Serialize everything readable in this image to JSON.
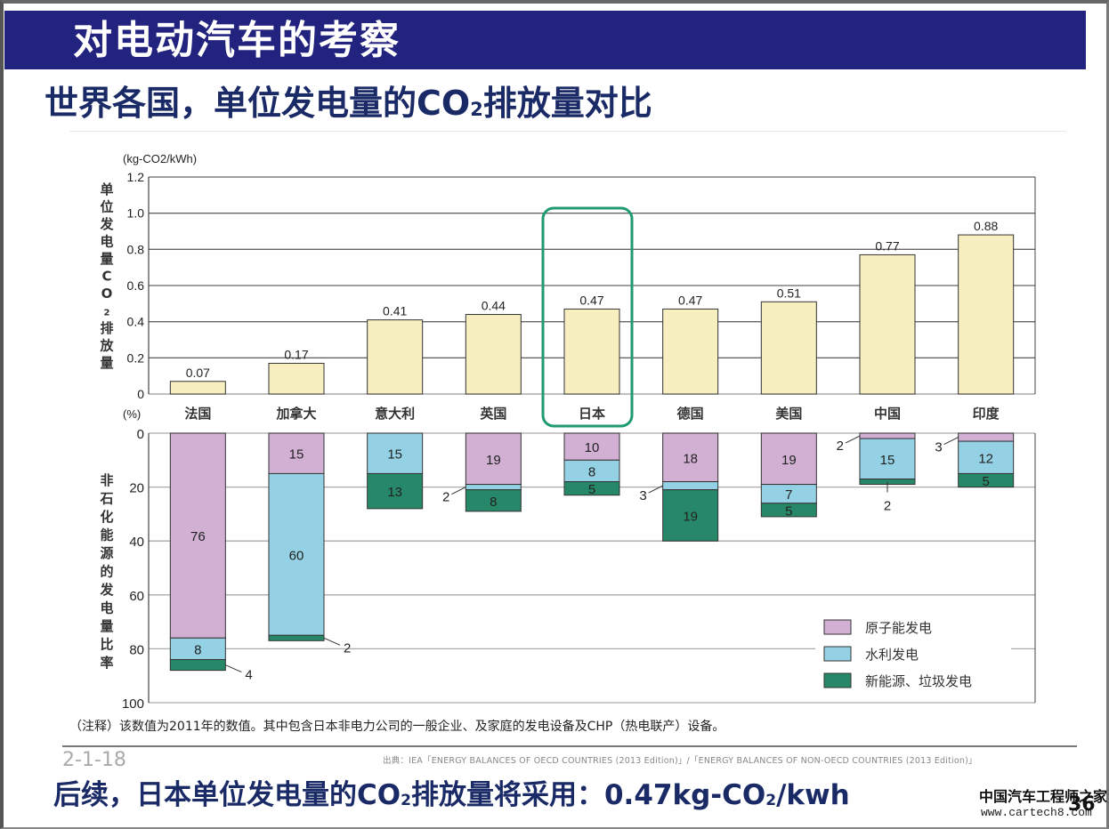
{
  "header": {
    "title": "对电动汽车的考察"
  },
  "subtitle": {
    "before": "世界各国，单位发电量的CO",
    "sub": "2",
    "after": "排放量对比"
  },
  "colors": {
    "header_bg": "#22227f",
    "title_text": "#1a2a66",
    "co2_bar": "#f7efc0",
    "nuclear": "#d2b0d4",
    "hydro": "#94d1e4",
    "renewable": "#268868",
    "highlight": "#1f9a72"
  },
  "chart_data": [
    {
      "type": "bar",
      "title": "单位发电量CO2排放量",
      "unit_label": "(kg-CO2/kWh)",
      "ylabel": "单位发电量CO2排放量",
      "categories": [
        "法国",
        "加拿大",
        "意大利",
        "英国",
        "日本",
        "德国",
        "美国",
        "中国",
        "印度"
      ],
      "values": [
        0.07,
        0.17,
        0.41,
        0.44,
        0.47,
        0.47,
        0.51,
        0.77,
        0.88
      ],
      "value_labels": [
        "0.07",
        "0.17",
        "0.41",
        "0.44",
        "0.47",
        "0.47",
        "0.51",
        "0.77",
        "0.88"
      ],
      "ylim": [
        0,
        1.2
      ],
      "yticks": [
        0,
        0.2,
        0.4,
        0.6,
        0.8,
        1.0,
        1.2
      ],
      "ytick_labels": [
        "0",
        "0.2",
        "0.4",
        "0.6",
        "0.8",
        "1.0",
        "1.2"
      ],
      "grid": true,
      "highlight_category": "日本"
    },
    {
      "type": "bar",
      "stacked": true,
      "inverted_axis": true,
      "title": "非石化能源的发电量比率",
      "unit_label": "(%)",
      "ylabel": "非石化能源的发电量比率",
      "categories": [
        "法国",
        "加拿大",
        "意大利",
        "英国",
        "日本",
        "德国",
        "美国",
        "中国",
        "印度"
      ],
      "series": [
        {
          "name": "原子能发电",
          "values": [
            76,
            15,
            0,
            19,
            10,
            18,
            19,
            2,
            3
          ]
        },
        {
          "name": "水利发电",
          "values": [
            8,
            60,
            15,
            2,
            8,
            3,
            7,
            15,
            12
          ]
        },
        {
          "name": "新能源、垃圾发电",
          "values": [
            4,
            2,
            13,
            8,
            5,
            19,
            5,
            2,
            5
          ]
        }
      ],
      "ylim": [
        0,
        100
      ],
      "yticks": [
        0,
        20,
        40,
        60,
        80,
        100
      ],
      "ytick_labels": [
        "0",
        "20",
        "40",
        "60",
        "80",
        "100"
      ],
      "grid": true,
      "legend": {
        "position": "bottom-right",
        "entries": [
          "原子能发电",
          "水利发电",
          "新能源、垃圾发电"
        ]
      }
    }
  ],
  "footer": {
    "note": "（注释）该数值为2011年的数值。其中包含日本非电力公司的一般企业、及家庭的发电设备及CHP（热电联产）设备。",
    "page_code": "2-1-18",
    "source": "出典：IEA「ENERGY BALANCES OF OECD COUNTRIES (2013 Edition)」/「ENERGY BALANCES OF NON-OECD COUNTRIES (2013 Edition)」"
  },
  "conclusion": {
    "before": "后续，日本单位发电量的CO",
    "sub": "2",
    "middle": "排放量将采用：0.47kg-CO",
    "sub2": "2",
    "after": "/kwh"
  },
  "watermark": {
    "name": "中国汽车工程师之家",
    "url": "www.cartech8.com"
  },
  "page_number": "36"
}
